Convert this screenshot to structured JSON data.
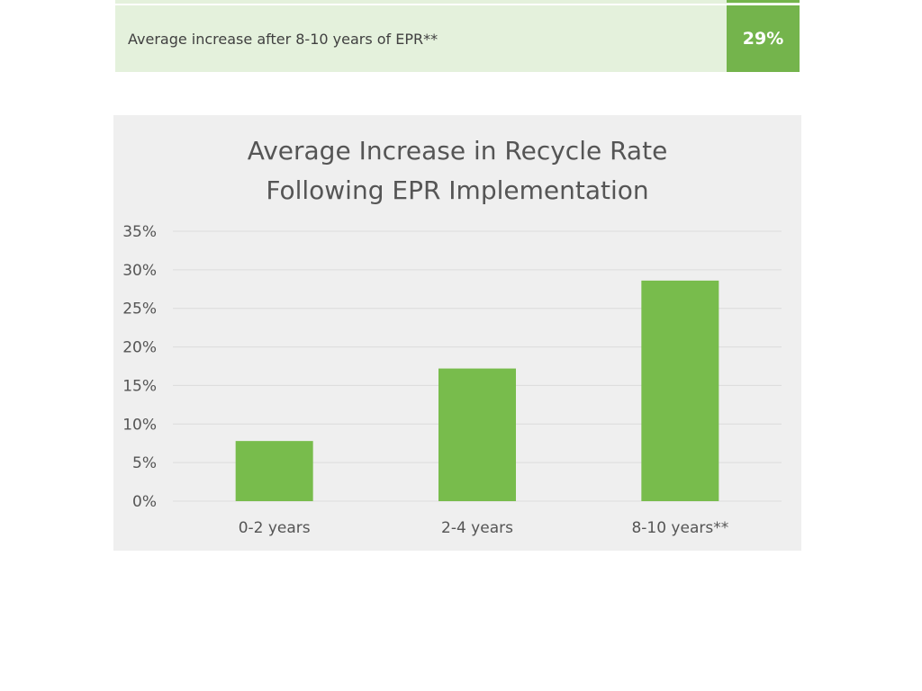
{
  "summary_row": {
    "label": "Average increase after 8-10 years of EPR**",
    "value": "29%"
  },
  "chart_data": {
    "type": "bar",
    "title": [
      "Average Increase in Recycle Rate",
      "Following EPR Implementation"
    ],
    "categories": [
      "0-2 years",
      "2-4 years",
      "8-10 years**"
    ],
    "values": [
      7.8,
      17.2,
      28.6
    ],
    "yticks": [
      "0%",
      "5%",
      "10%",
      "15%",
      "20%",
      "25%",
      "30%",
      "35%"
    ],
    "ylim": [
      0,
      35
    ],
    "xlabel": "",
    "ylabel": "",
    "grid": true,
    "bar_color": "#78bc4c"
  }
}
